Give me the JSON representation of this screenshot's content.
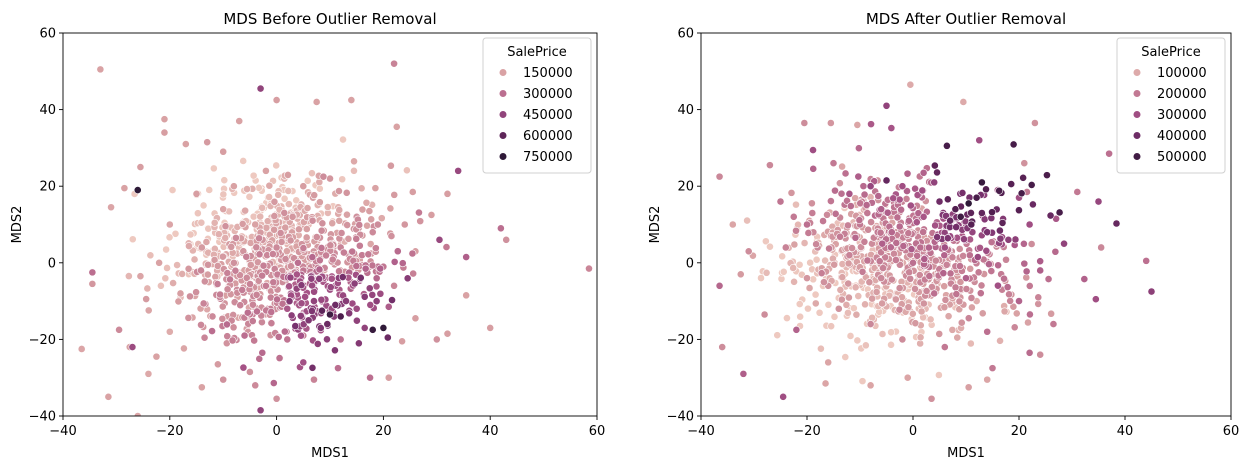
{
  "chart_data": [
    {
      "type": "scatter",
      "title": "MDS Before Outlier Removal",
      "xlabel": "MDS1",
      "ylabel": "MDS2",
      "xlim": [
        -40,
        60
      ],
      "ylim": [
        -40,
        60
      ],
      "xticks": [
        "−40",
        "−20",
        "0",
        "20",
        "40",
        "60"
      ],
      "yticks": [
        "−40",
        "−20",
        "0",
        "20",
        "40",
        "60"
      ],
      "grid": false,
      "legend": {
        "title": "SalePrice",
        "placement": "top-right",
        "entries": [
          {
            "label": "150000",
            "value": 150000
          },
          {
            "label": "300000",
            "value": 300000
          },
          {
            "label": "450000",
            "value": 450000
          },
          {
            "label": "600000",
            "value": 600000
          },
          {
            "label": "750000",
            "value": 750000
          }
        ]
      },
      "hue_range": [
        35000,
        755000
      ],
      "points": [
        [
          -33,
          50.5,
          150000
        ],
        [
          -31,
          14.5,
          140000
        ],
        [
          -25.5,
          25,
          160000
        ],
        [
          -28.5,
          19.5,
          150000
        ],
        [
          -26,
          19,
          755000
        ],
        [
          -34.5,
          -2.5,
          300000
        ],
        [
          -34.5,
          -5.5,
          180000
        ],
        [
          -36.5,
          -22.5,
          140000
        ],
        [
          -31.5,
          -35,
          150000
        ],
        [
          -26,
          -40,
          140000
        ],
        [
          -27,
          -22,
          420000
        ],
        [
          -29.5,
          -17.5,
          220000
        ],
        [
          -25.5,
          -3.5,
          140000
        ],
        [
          -21,
          37.5,
          150000
        ],
        [
          -21,
          34,
          160000
        ],
        [
          -17,
          31,
          150000
        ],
        [
          -13,
          31.5,
          170000
        ],
        [
          -10,
          29,
          160000
        ],
        [
          -7,
          37,
          150000
        ],
        [
          -3,
          45.5,
          450000
        ],
        [
          0,
          42.5,
          160000
        ],
        [
          7.5,
          42,
          150000
        ],
        [
          14,
          42.5,
          150000
        ],
        [
          22,
          52,
          240000
        ],
        [
          22.5,
          35.5,
          150000
        ],
        [
          14.5,
          26.5,
          130000
        ],
        [
          18.5,
          19.5,
          150000
        ],
        [
          25.5,
          18.5,
          160000
        ],
        [
          32,
          18,
          160000
        ],
        [
          29,
          12.5,
          160000
        ],
        [
          26,
          3,
          160000
        ],
        [
          30.5,
          6,
          430000
        ],
        [
          34,
          24,
          430000
        ],
        [
          42,
          9,
          300000
        ],
        [
          43,
          6,
          200000
        ],
        [
          35.5,
          1.5,
          350000
        ],
        [
          58.5,
          -1.5,
          230000
        ],
        [
          35.5,
          -8.5,
          150000
        ],
        [
          32,
          -18.5,
          160000
        ],
        [
          30,
          -20,
          200000
        ],
        [
          40,
          -17,
          160000
        ],
        [
          26,
          -14.5,
          160000
        ],
        [
          21,
          -11.5,
          360000
        ],
        [
          20,
          -17,
          750000
        ],
        [
          18,
          -17.5,
          720000
        ],
        [
          16.5,
          -17,
          450000
        ],
        [
          17.5,
          -30,
          300000
        ],
        [
          21,
          -30,
          160000
        ],
        [
          23.5,
          -20.5,
          160000
        ],
        [
          11.5,
          -27.5,
          300000
        ],
        [
          7,
          -30.5,
          240000
        ],
        [
          5,
          -26,
          400000
        ],
        [
          5,
          -19,
          250000
        ],
        [
          0,
          -35.5,
          200000
        ],
        [
          -3,
          -38.5,
          450000
        ],
        [
          -4,
          -32,
          220000
        ],
        [
          -5,
          -28.5,
          200000
        ],
        [
          -10,
          -30.5,
          200000
        ],
        [
          -11,
          -26.5,
          170000
        ],
        [
          -14,
          -32.5,
          150000
        ],
        [
          -22.5,
          -24.5,
          150000
        ],
        [
          -24,
          -29,
          130000
        ],
        [
          -27.5,
          -22,
          150000
        ],
        [
          -20,
          -18,
          120000
        ],
        [
          10,
          -13.5,
          700000
        ],
        [
          12,
          -14,
          650000
        ],
        [
          8.5,
          -12.5,
          600000
        ],
        [
          11,
          -11,
          550000
        ],
        [
          9.5,
          -16,
          560000
        ],
        [
          6,
          -15,
          500000
        ],
        [
          13,
          -10,
          480000
        ],
        [
          3.5,
          -16.5,
          520000
        ],
        [
          15,
          -12,
          420000
        ],
        [
          7,
          -10,
          450000
        ],
        [
          2,
          -12,
          380000
        ],
        [
          10,
          -7,
          420000
        ],
        [
          19,
          -1,
          280000
        ],
        [
          18,
          8,
          220000
        ],
        [
          15,
          12,
          200000
        ],
        [
          10,
          22,
          180000
        ],
        [
          -8,
          20,
          150000
        ],
        [
          -15,
          18,
          160000
        ],
        [
          -20,
          10,
          140000
        ],
        [
          -22,
          0,
          150000
        ],
        [
          -18,
          -8,
          160000
        ],
        [
          -12,
          -14,
          220000
        ],
        [
          -6,
          -19,
          300000
        ],
        [
          2,
          -20,
          280000
        ],
        [
          12,
          -20,
          300000
        ],
        [
          22,
          -6,
          230000
        ],
        [
          24,
          10,
          180000
        ],
        [
          -2,
          24,
          150000
        ],
        [
          5,
          20,
          160000
        ],
        [
          -10,
          14,
          140000
        ],
        [
          -4,
          10,
          150000
        ],
        [
          0,
          4,
          220000
        ],
        [
          4,
          0,
          300000
        ],
        [
          8,
          -4,
          380000
        ],
        [
          -8,
          0,
          200000
        ],
        [
          -14,
          4,
          170000
        ],
        [
          16,
          2,
          260000
        ],
        [
          -2,
          -6,
          260000
        ],
        [
          3,
          12,
          180000
        ],
        [
          12,
          4,
          240000
        ]
      ]
    },
    {
      "type": "scatter",
      "title": "MDS After Outlier Removal",
      "xlabel": "MDS1",
      "ylabel": "MDS2",
      "xlim": [
        -40,
        60
      ],
      "ylim": [
        -40,
        60
      ],
      "xticks": [
        "−40",
        "−20",
        "0",
        "20",
        "40",
        "60"
      ],
      "yticks": [
        "−40",
        "−20",
        "0",
        "20",
        "40",
        "60"
      ],
      "grid": false,
      "legend": {
        "title": "SalePrice",
        "placement": "top-right",
        "entries": [
          {
            "label": "100000",
            "value": 100000
          },
          {
            "label": "200000",
            "value": 200000
          },
          {
            "label": "300000",
            "value": 300000
          },
          {
            "label": "400000",
            "value": 400000
          },
          {
            "label": "500000",
            "value": 500000
          }
        ]
      },
      "hue_range": [
        35000,
        545000
      ],
      "points": [
        [
          -0.5,
          46.5,
          100000
        ],
        [
          9.5,
          42,
          100000
        ],
        [
          -5,
          41,
          330000
        ],
        [
          -15.5,
          36.5,
          140000
        ],
        [
          -20.5,
          36.5,
          160000
        ],
        [
          -10.5,
          36,
          110000
        ],
        [
          23,
          36.5,
          150000
        ],
        [
          12.5,
          32,
          300000
        ],
        [
          37,
          28.5,
          220000
        ],
        [
          -36.5,
          22.5,
          170000
        ],
        [
          -27,
          25.5,
          170000
        ],
        [
          -25,
          16,
          210000
        ],
        [
          -22.5,
          12,
          200000
        ],
        [
          -19,
          13,
          190000
        ],
        [
          -34,
          10,
          110000
        ],
        [
          -31,
          3,
          160000
        ],
        [
          -32.5,
          -3,
          130000
        ],
        [
          -36.5,
          -6,
          240000
        ],
        [
          -36,
          -22,
          160000
        ],
        [
          -32,
          -29,
          260000
        ],
        [
          -24.5,
          -35,
          300000
        ],
        [
          -28,
          -13.5,
          160000
        ],
        [
          -22,
          -17.5,
          250000
        ],
        [
          -16,
          -26,
          110000
        ],
        [
          -16.5,
          -31.5,
          110000
        ],
        [
          -8,
          -32,
          110000
        ],
        [
          -1,
          -30,
          110000
        ],
        [
          3.5,
          -35.5,
          150000
        ],
        [
          10.5,
          -32.5,
          120000
        ],
        [
          14,
          -30.5,
          110000
        ],
        [
          15,
          -27.5,
          200000
        ],
        [
          22,
          -23.5,
          230000
        ],
        [
          24,
          -24,
          160000
        ],
        [
          26.5,
          -16,
          200000
        ],
        [
          34.5,
          -9.5,
          300000
        ],
        [
          44,
          0.5,
          220000
        ],
        [
          45,
          -7.5,
          340000
        ],
        [
          35.5,
          4,
          170000
        ],
        [
          31,
          18.5,
          200000
        ],
        [
          35,
          16,
          320000
        ],
        [
          28.5,
          5,
          330000
        ],
        [
          27,
          11.5,
          280000
        ],
        [
          21.5,
          18.5,
          200000
        ],
        [
          21,
          26,
          150000
        ],
        [
          20,
          17,
          300000
        ],
        [
          16,
          19,
          280000
        ],
        [
          13,
          21,
          520000
        ],
        [
          12,
          17,
          480000
        ],
        [
          10.5,
          15.5,
          540000
        ],
        [
          9,
          12,
          500000
        ],
        [
          11,
          10,
          450000
        ],
        [
          7,
          11,
          420000
        ],
        [
          8,
          14,
          460000
        ],
        [
          13,
          13,
          430000
        ],
        [
          5,
          16,
          400000
        ],
        [
          4,
          21,
          330000
        ],
        [
          2,
          23.5,
          250000
        ],
        [
          -2,
          20,
          300000
        ],
        [
          -5,
          21.5,
          420000
        ],
        [
          -8,
          20,
          320000
        ],
        [
          -12,
          18,
          280000
        ],
        [
          -15,
          26,
          200000
        ],
        [
          -20,
          10,
          220000
        ],
        [
          -24,
          4,
          180000
        ],
        [
          -20,
          -4,
          140000
        ],
        [
          -14,
          -12,
          150000
        ],
        [
          -8,
          -16,
          170000
        ],
        [
          -2,
          -20,
          160000
        ],
        [
          6,
          -22,
          200000
        ],
        [
          14,
          -18,
          220000
        ],
        [
          20,
          -10,
          250000
        ],
        [
          24,
          -2,
          260000
        ],
        [
          18,
          6,
          340000
        ],
        [
          14,
          8,
          380000
        ],
        [
          6,
          4,
          300000
        ],
        [
          0,
          0,
          220000
        ],
        [
          -6,
          -4,
          170000
        ],
        [
          -12,
          2,
          180000
        ],
        [
          -16,
          -6,
          150000
        ],
        [
          -4,
          8,
          240000
        ],
        [
          4,
          -8,
          220000
        ],
        [
          10,
          -4,
          260000
        ],
        [
          16,
          -6,
          250000
        ],
        [
          -10,
          10,
          200000
        ],
        [
          2,
          12,
          280000
        ],
        [
          -18,
          4,
          170000
        ],
        [
          22,
          10,
          300000
        ],
        [
          -6,
          14,
          260000
        ]
      ]
    }
  ]
}
